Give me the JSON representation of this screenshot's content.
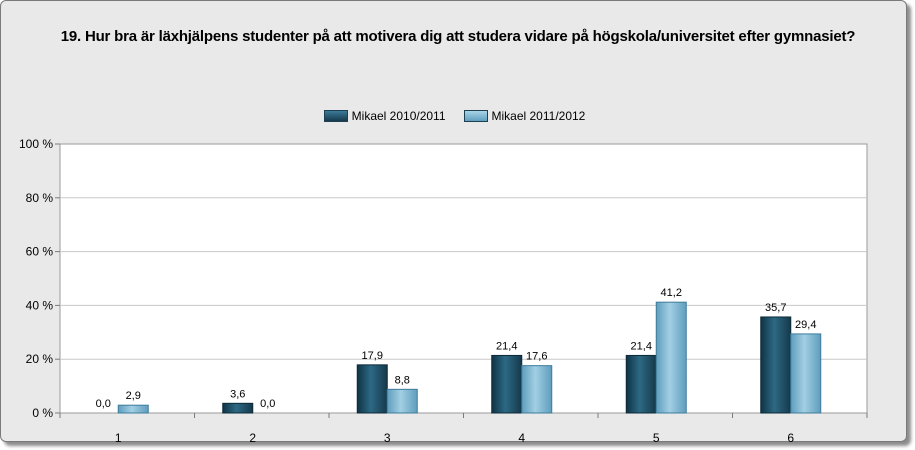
{
  "chart_data": {
    "type": "bar",
    "title": "19. Hur bra är läxhjälpens studenter på att motivera dig att studera vidare på högskola/universitet efter gymnasiet?",
    "categories": [
      "1",
      "2",
      "3",
      "4",
      "5",
      "6"
    ],
    "series": [
      {
        "name": "Mikael 2010/2011",
        "values": [
          0.0,
          3.6,
          17.9,
          21.4,
          21.4,
          35.7
        ],
        "labels": [
          "0,0",
          "3,6",
          "17,9",
          "21,4",
          "21,4",
          "35,7"
        ],
        "color": "#1e4c63"
      },
      {
        "name": "Mikael 2011/2012",
        "values": [
          2.9,
          0.0,
          8.8,
          17.6,
          41.2,
          29.4
        ],
        "labels": [
          "2,9",
          "0,0",
          "8,8",
          "17,6",
          "41,2",
          "29,4"
        ],
        "color": "#7fbad6"
      }
    ],
    "y_ticks": [
      "0 %",
      "20 %",
      "40 %",
      "60 %",
      "80 %",
      "100 %"
    ],
    "ylim": [
      0,
      100
    ],
    "xlabel": "",
    "ylabel": "",
    "legend_position": "top-center",
    "grid": "horizontal"
  }
}
